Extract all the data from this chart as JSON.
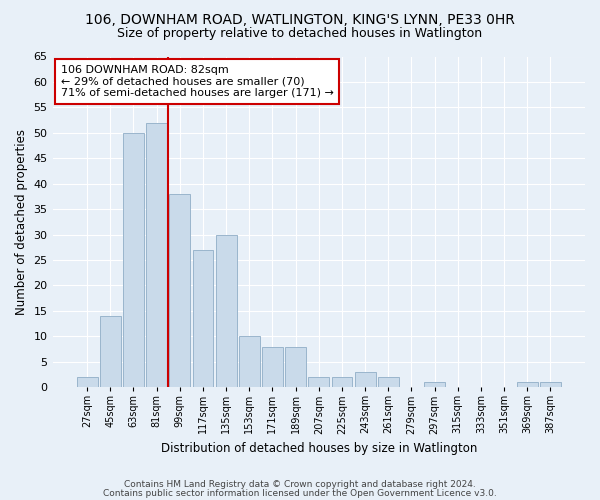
{
  "title1": "106, DOWNHAM ROAD, WATLINGTON, KING'S LYNN, PE33 0HR",
  "title2": "Size of property relative to detached houses in Watlington",
  "xlabel": "Distribution of detached houses by size in Watlington",
  "ylabel": "Number of detached properties",
  "categories": [
    "27sqm",
    "45sqm",
    "63sqm",
    "81sqm",
    "99sqm",
    "117sqm",
    "135sqm",
    "153sqm",
    "171sqm",
    "189sqm",
    "207sqm",
    "225sqm",
    "243sqm",
    "261sqm",
    "279sqm",
    "297sqm",
    "315sqm",
    "333sqm",
    "351sqm",
    "369sqm",
    "387sqm"
  ],
  "values": [
    2,
    14,
    50,
    52,
    38,
    27,
    30,
    10,
    8,
    8,
    2,
    2,
    3,
    2,
    0,
    1,
    0,
    0,
    0,
    1,
    1
  ],
  "bar_color": "#c9daea",
  "bar_edge_color": "#9ab5cc",
  "vline_x": 3.5,
  "vline_color": "#cc0000",
  "annotation_text": "106 DOWNHAM ROAD: 82sqm\n← 29% of detached houses are smaller (70)\n71% of semi-detached houses are larger (171) →",
  "annotation_box_color": "white",
  "annotation_box_edgecolor": "#cc0000",
  "ylim": [
    0,
    65
  ],
  "yticks": [
    0,
    5,
    10,
    15,
    20,
    25,
    30,
    35,
    40,
    45,
    50,
    55,
    60,
    65
  ],
  "footer1": "Contains HM Land Registry data © Crown copyright and database right 2024.",
  "footer2": "Contains public sector information licensed under the Open Government Licence v3.0.",
  "bg_color": "#e8f0f8",
  "plot_bg_color": "#e8f0f8",
  "grid_color": "white",
  "title1_fontsize": 10,
  "title2_fontsize": 9,
  "xlabel_fontsize": 8.5,
  "ylabel_fontsize": 8.5,
  "annotation_fontsize": 8,
  "footer_fontsize": 6.5
}
